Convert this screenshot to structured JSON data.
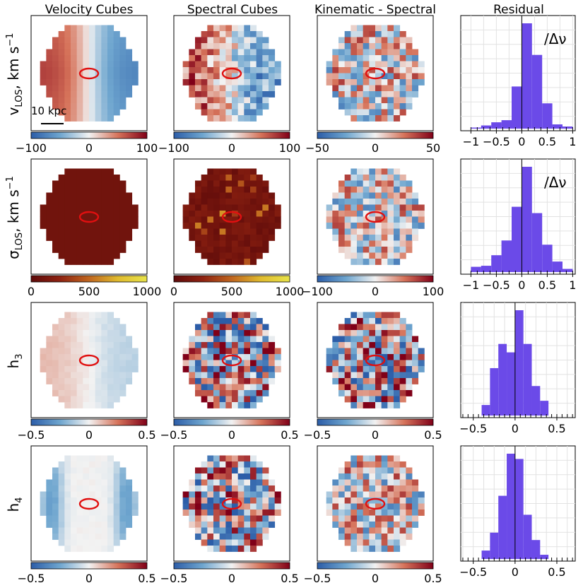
{
  "column_titles": [
    "Velocity Cubes",
    "Spectral Cubes",
    "Kinematic - Spectral",
    "Residual"
  ],
  "row_labels": [
    {
      "main": "v",
      "sub": "LOS",
      "suffix": ", km s",
      "sup": "−1"
    },
    {
      "main": "σ",
      "sub": "LOS",
      "suffix": ", km s",
      "sup": "−1"
    },
    {
      "main": "h",
      "sub": "3",
      "suffix": "",
      "sup": ""
    },
    {
      "main": "h",
      "sub": "4",
      "suffix": "",
      "sup": ""
    }
  ],
  "scale_bar_label": "10 kpc",
  "residual_annotation": "/Δν",
  "colormaps": {
    "diverging": [
      "#2c5da8",
      "#6fa6cf",
      "#f2f2f2",
      "#d6735a",
      "#800018"
    ],
    "sequential": [
      "#5e0a0a",
      "#8e2211",
      "#c0661f",
      "#e0bb2e",
      "#e8e34a"
    ]
  },
  "histogram_color": "#6b4ae8",
  "chart_data": [
    {
      "type": "heatmap",
      "row": "v_LOS",
      "panel": "Velocity Cubes",
      "colormap": "diverging",
      "clim": [
        -100,
        100
      ],
      "ticks": [
        "−100",
        "0",
        "100"
      ],
      "pattern": "velocity gradient: positive (red) on left, negative (blue) on right"
    },
    {
      "type": "heatmap",
      "row": "v_LOS",
      "panel": "Spectral Cubes",
      "colormap": "diverging",
      "clim": [
        -100,
        100
      ],
      "ticks": [
        "−100",
        "0",
        "100"
      ],
      "pattern": "noisy velocity gradient"
    },
    {
      "type": "heatmap",
      "row": "v_LOS",
      "panel": "Kinematic - Spectral",
      "colormap": "diverging",
      "clim": [
        -50,
        50
      ],
      "ticks": [
        "−50",
        "0",
        "50"
      ],
      "pattern": "random noise"
    },
    {
      "type": "bar",
      "row": "v_LOS",
      "panel": "Residual",
      "xlim": [
        -1.2,
        1.05
      ],
      "ticks": [
        "−1",
        "−0.5",
        "0",
        "0.5",
        "1"
      ],
      "annotation": "/Δν",
      "bins": [
        -1.0,
        -0.8,
        -0.6,
        -0.4,
        -0.2,
        0.0,
        0.2,
        0.4,
        0.6,
        0.8
      ],
      "bin_width": 0.2,
      "counts": [
        0.01,
        0.03,
        0.06,
        0.08,
        0.4,
        1.0,
        0.7,
        0.24,
        0.04,
        0.02
      ]
    },
    {
      "type": "heatmap",
      "row": "sigma_LOS",
      "panel": "Velocity Cubes",
      "colormap": "sequential",
      "clim": [
        0,
        1000
      ],
      "ticks": [
        "0",
        "500",
        "1000"
      ],
      "pattern": "uniform dark red"
    },
    {
      "type": "heatmap",
      "row": "sigma_LOS",
      "panel": "Spectral Cubes",
      "colormap": "sequential",
      "clim": [
        0,
        1000
      ],
      "ticks": [
        "0",
        "500",
        "1000"
      ],
      "pattern": "dark red with scattered brighter pixels"
    },
    {
      "type": "heatmap",
      "row": "sigma_LOS",
      "panel": "Kinematic - Spectral",
      "colormap": "diverging",
      "clim": [
        -100,
        100
      ],
      "ticks": [
        "−100",
        "0",
        "100"
      ],
      "pattern": "random noise"
    },
    {
      "type": "bar",
      "row": "sigma_LOS",
      "panel": "Residual",
      "xlim": [
        -1.2,
        1.05
      ],
      "ticks": [
        "−1",
        "−0.5",
        "0",
        "0.5",
        "1"
      ],
      "annotation": "/Δν",
      "bins": [
        -1.0,
        -0.8,
        -0.6,
        -0.4,
        -0.2,
        0.0,
        0.2,
        0.4,
        0.6,
        0.8
      ],
      "bin_width": 0.2,
      "counts": [
        0.05,
        0.06,
        0.16,
        0.3,
        0.62,
        1.0,
        0.56,
        0.26,
        0.1,
        0.03
      ]
    },
    {
      "type": "heatmap",
      "row": "h3",
      "panel": "Velocity Cubes",
      "colormap": "diverging",
      "clim": [
        -0.5,
        0.5
      ],
      "ticks": [
        "−0.5",
        "0",
        "0.5"
      ],
      "pattern": "faint gradient: light red left, light blue right"
    },
    {
      "type": "heatmap",
      "row": "h3",
      "panel": "Spectral Cubes",
      "colormap": "diverging",
      "clim": [
        -0.5,
        0.5
      ],
      "ticks": [
        "−0.5",
        "0",
        "0.5"
      ],
      "pattern": "strong random noise"
    },
    {
      "type": "heatmap",
      "row": "h3",
      "panel": "Kinematic - Spectral",
      "colormap": "diverging",
      "clim": [
        -0.5,
        0.5
      ],
      "ticks": [
        "−0.5",
        "0",
        "0.5"
      ],
      "pattern": "strong random noise"
    },
    {
      "type": "bar",
      "row": "h3",
      "panel": "Residual",
      "xlim": [
        -0.65,
        0.72
      ],
      "ticks": [
        "−0.5",
        "0",
        "0.5"
      ],
      "bins": [
        -0.4,
        -0.3,
        -0.2,
        -0.1,
        0.0,
        0.1,
        0.2,
        0.3
      ],
      "bin_width": 0.1,
      "counts": [
        0.1,
        0.45,
        0.68,
        0.6,
        1.0,
        0.68,
        0.28,
        0.14
      ]
    },
    {
      "type": "heatmap",
      "row": "h4",
      "panel": "Velocity Cubes",
      "colormap": "diverging",
      "clim": [
        -0.5,
        0.5
      ],
      "ticks": [
        "−0.5",
        "0",
        "0.5"
      ],
      "pattern": "two blue lobes left and right, white center"
    },
    {
      "type": "heatmap",
      "row": "h4",
      "panel": "Spectral Cubes",
      "colormap": "diverging",
      "clim": [
        -0.5,
        0.5
      ],
      "ticks": [
        "−0.5",
        "0",
        "0.5"
      ],
      "pattern": "strong random noise"
    },
    {
      "type": "heatmap",
      "row": "h4",
      "panel": "Kinematic - Spectral",
      "colormap": "diverging",
      "clim": [
        -0.5,
        0.5
      ],
      "ticks": [
        "−0.5",
        "0",
        "0.5"
      ],
      "pattern": "random noise"
    },
    {
      "type": "bar",
      "row": "h4",
      "panel": "Residual",
      "xlim": [
        -0.65,
        0.72
      ],
      "ticks": [
        "−0.5",
        "0",
        "0.5"
      ],
      "bins": [
        -0.4,
        -0.3,
        -0.2,
        -0.1,
        0.0,
        0.1,
        0.2,
        0.3
      ],
      "bin_width": 0.1,
      "counts": [
        0.08,
        0.25,
        0.6,
        1.0,
        0.95,
        0.42,
        0.18,
        0.04
      ]
    }
  ]
}
